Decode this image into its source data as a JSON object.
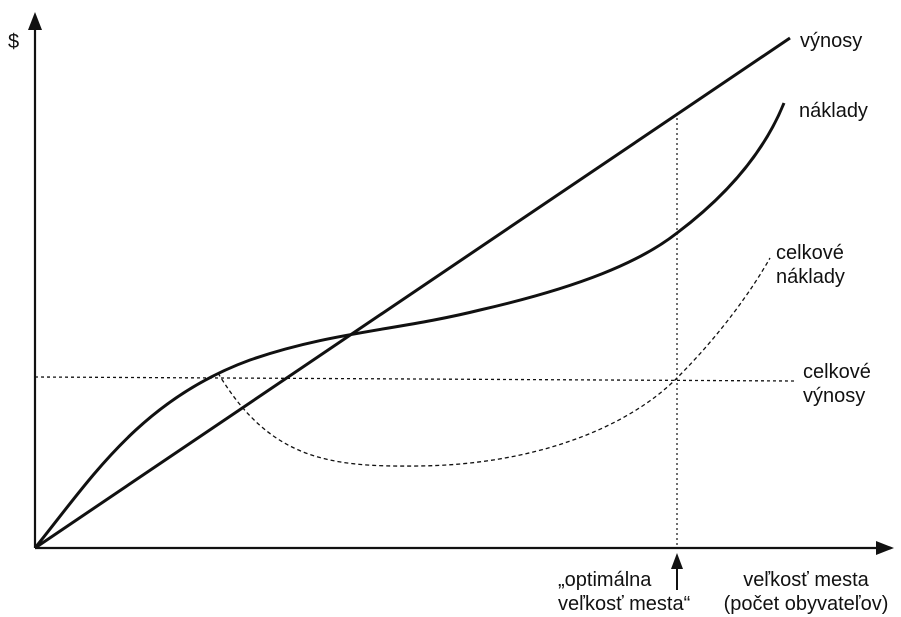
{
  "axes": {
    "y_label": "$",
    "x_label_line1": "veľkosť mesta",
    "x_label_line2": "(počet obyvateľov)"
  },
  "curves": {
    "revenue": "výnosy",
    "costs": "náklady",
    "total_costs_line1": "celkové",
    "total_costs_line2": "náklady",
    "total_revenue_line1": "celkové",
    "total_revenue_line2": "výnosy"
  },
  "marker": {
    "line1": "„optimálna",
    "line2": "veľkosť mesta“"
  },
  "colors": {
    "ink": "#111111",
    "background": "#ffffff"
  }
}
